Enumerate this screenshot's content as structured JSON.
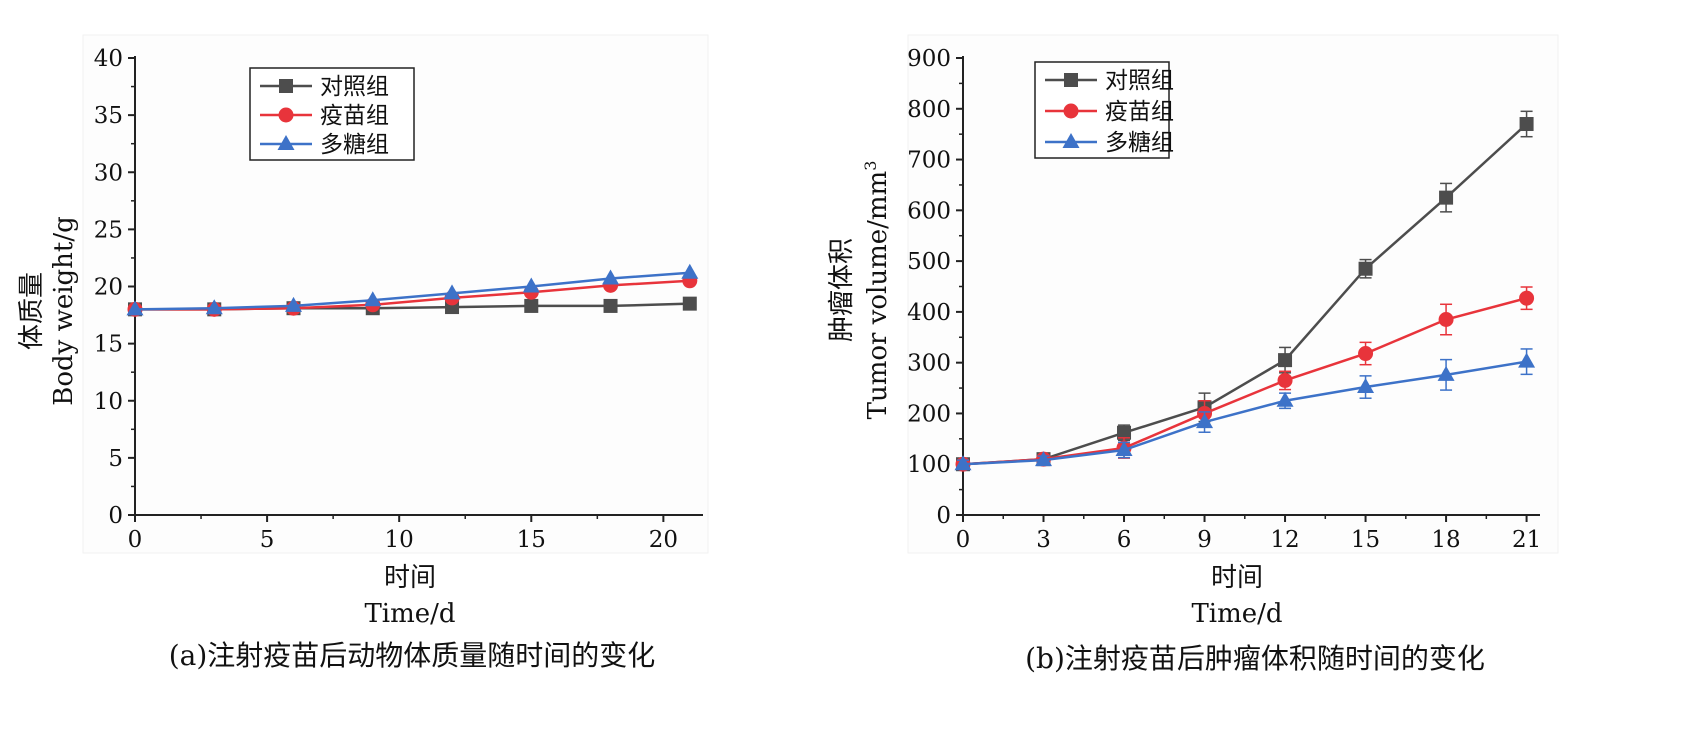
{
  "chart_data": [
    {
      "type": "line",
      "caption": "(a)注射疫苗后动物体质量随时间的变化",
      "xlabel_cn": "时间",
      "xlabel_en": "Time/d",
      "ylabel_cn": "体质量",
      "ylabel_en": "Body  weight/g",
      "xlim": [
        0,
        21.5
      ],
      "ylim": [
        0,
        40
      ],
      "xticks": [
        0,
        5,
        10,
        15,
        20
      ],
      "yticks": [
        0,
        5,
        10,
        15,
        20,
        25,
        30,
        35,
        40
      ],
      "legend_position": "top-left",
      "grid": false,
      "x": [
        0,
        3,
        6,
        9,
        12,
        15,
        18,
        21
      ],
      "series": [
        {
          "name": "对照组",
          "color": "#4d4d4d",
          "marker": "square",
          "values": [
            18.0,
            18.0,
            18.1,
            18.1,
            18.2,
            18.3,
            18.3,
            18.5
          ]
        },
        {
          "name": "疫苗组",
          "color": "#e8343b",
          "marker": "circle",
          "values": [
            18.0,
            18.0,
            18.1,
            18.4,
            19.0,
            19.5,
            20.1,
            20.5
          ]
        },
        {
          "name": "多糖组",
          "color": "#3d72c8",
          "marker": "triangle",
          "values": [
            18.0,
            18.1,
            18.3,
            18.8,
            19.4,
            20.0,
            20.7,
            21.2
          ]
        }
      ]
    },
    {
      "type": "line",
      "caption": "(b)注射疫苗后肿瘤体积随时间的变化",
      "xlabel_cn": "时间",
      "xlabel_en": "Time/d",
      "ylabel_cn": "肿瘤体积",
      "ylabel_en": "Tumor  volume/mm",
      "ylabel_sup": "3",
      "xlim": [
        0,
        21.5
      ],
      "ylim": [
        0,
        900
      ],
      "xticks": [
        0,
        3,
        6,
        9,
        12,
        15,
        18,
        21
      ],
      "yticks": [
        0,
        100,
        200,
        300,
        400,
        500,
        600,
        700,
        800,
        900
      ],
      "legend_position": "top-left",
      "grid": false,
      "x": [
        0,
        3,
        6,
        9,
        12,
        15,
        18,
        21
      ],
      "series": [
        {
          "name": "对照组",
          "color": "#4d4d4d",
          "marker": "square",
          "values": [
            100,
            110,
            162,
            212,
            305,
            485,
            625,
            770
          ],
          "errors": [
            8,
            8,
            15,
            28,
            25,
            18,
            28,
            25
          ]
        },
        {
          "name": "疫苗组",
          "color": "#e8343b",
          "marker": "circle",
          "values": [
            100,
            110,
            132,
            200,
            265,
            318,
            385,
            427
          ],
          "errors": [
            8,
            8,
            20,
            25,
            18,
            22,
            30,
            22
          ]
        },
        {
          "name": "多糖组",
          "color": "#3d72c8",
          "marker": "triangle",
          "values": [
            100,
            108,
            128,
            183,
            225,
            252,
            276,
            302
          ],
          "errors": [
            8,
            8,
            15,
            20,
            15,
            22,
            30,
            25
          ]
        }
      ]
    }
  ]
}
